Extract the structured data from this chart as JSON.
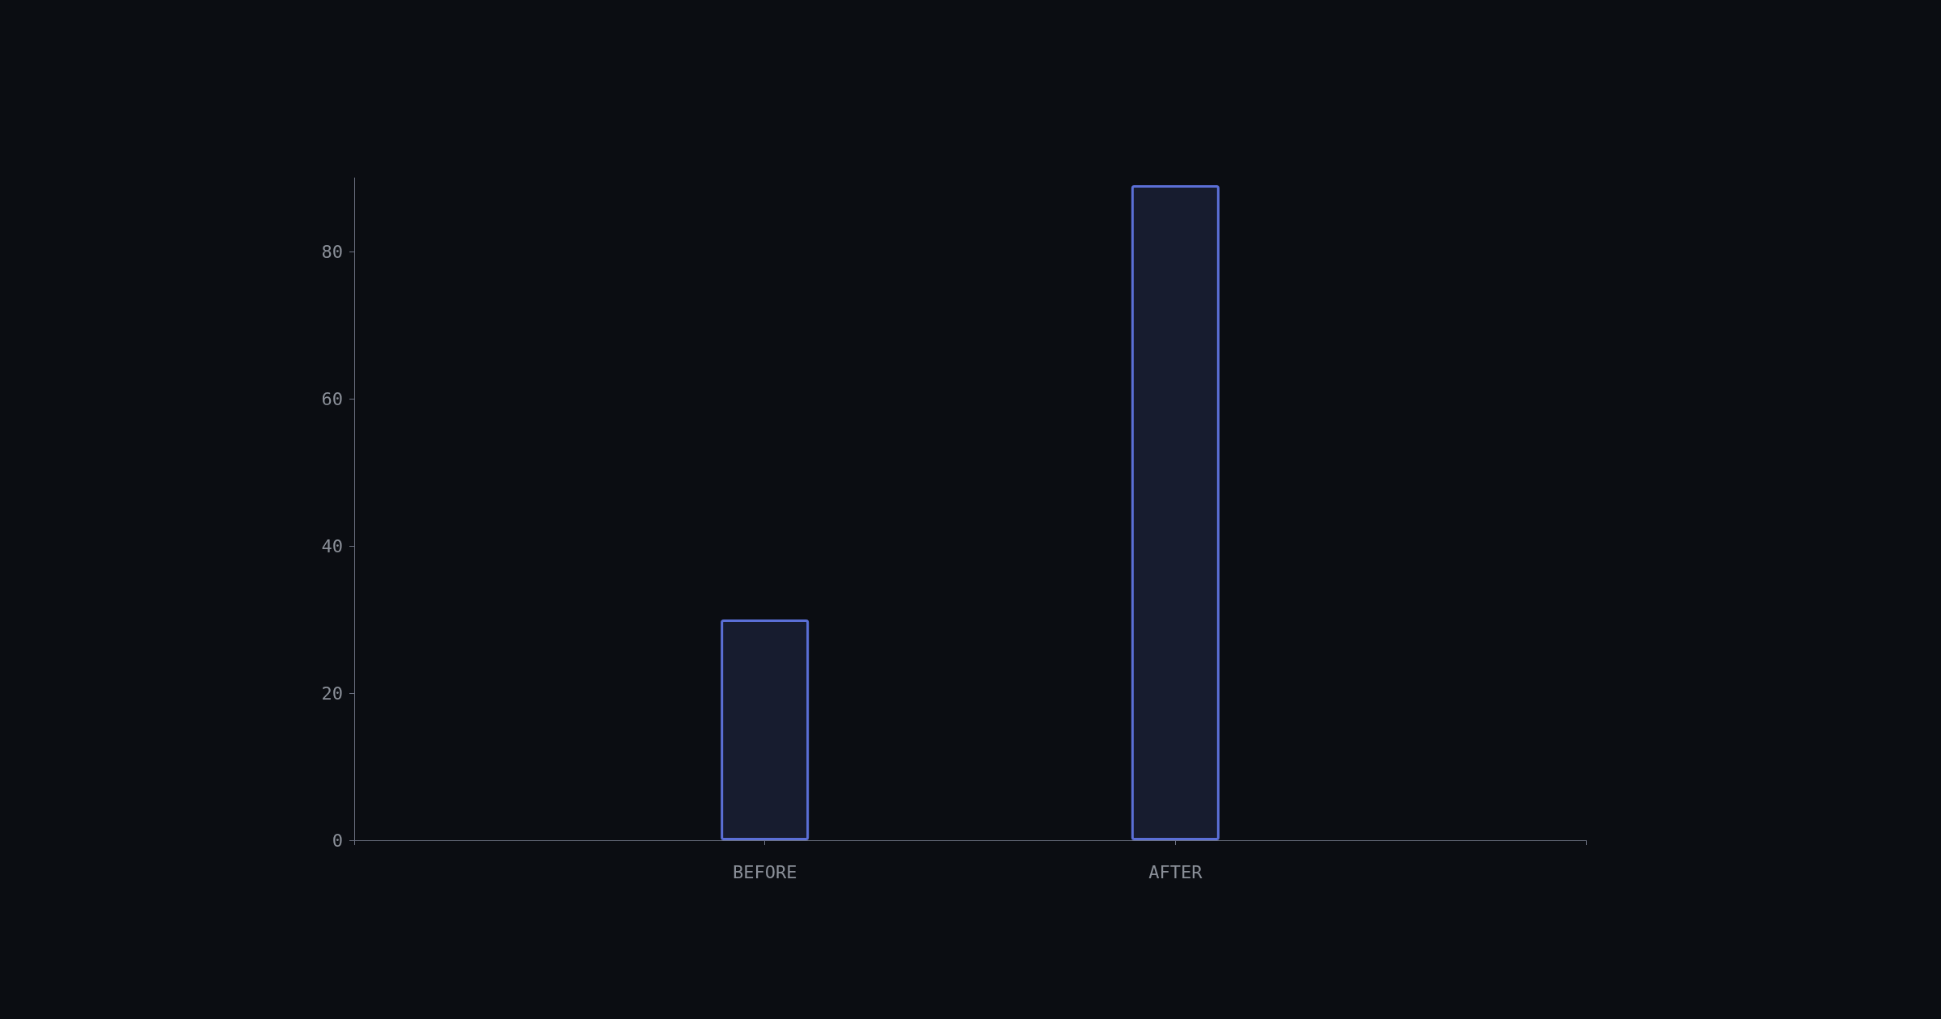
{
  "chart_data": {
    "type": "bar",
    "categories": [
      "BEFORE",
      "AFTER"
    ],
    "values": [
      30,
      89
    ],
    "color": "#5b6fd6",
    "ylim": [
      0,
      90
    ],
    "yticks": [
      0,
      20,
      40,
      60,
      80
    ],
    "grid": false
  }
}
